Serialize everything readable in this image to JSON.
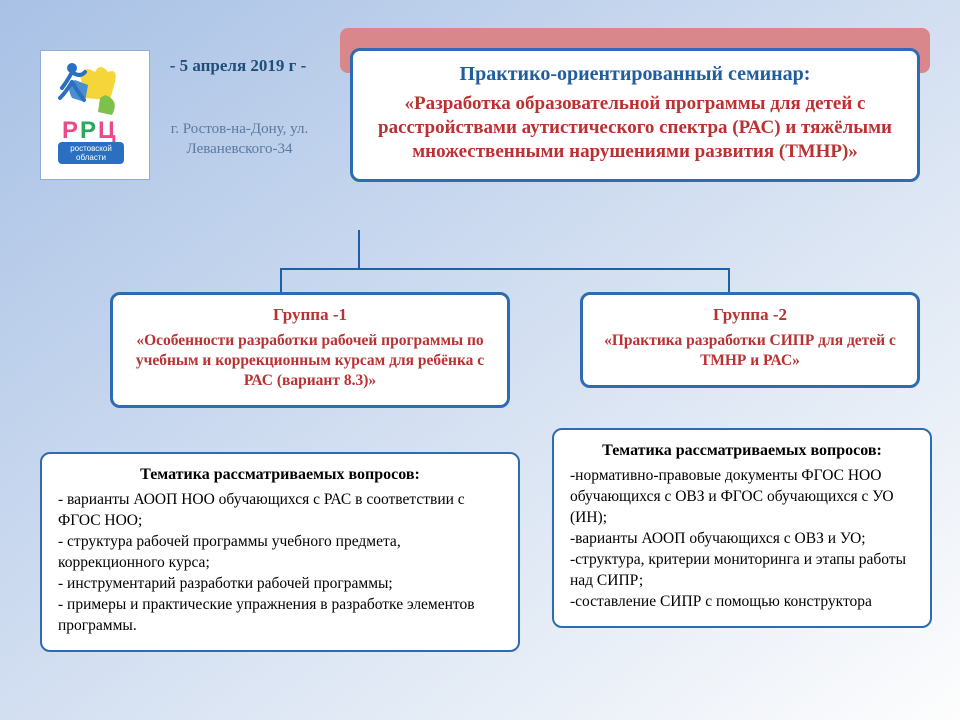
{
  "background": {
    "gradient_from": "#a8c1e5",
    "gradient_to": "#fdfdfd",
    "angle": "to bottom right"
  },
  "date": "- 5 апреля 2019 г -",
  "address": "г. Ростов-на-Дону, ул. Леваневского-34",
  "header": {
    "red_bg": "#d9878b",
    "border_color": "#2e6bb0",
    "title": "Практико-ориентированный семинар:",
    "subtitle": "«Разработка образовательной программы для детей с расстройствами аутистического спектра (РАС) и тяжёлыми множественными нарушениями развития (ТМНР)»"
  },
  "connector_color": "#1f5fa8",
  "group1": {
    "border_color": "#2e6bb0",
    "title": "Группа -1",
    "desc": "«Особенности разработки рабочей программы по учебным и коррекционным курсам для ребёнка с РАС (вариант 8.3)»",
    "desc_color": "#b83232"
  },
  "group2": {
    "border_color": "#2e6bb0",
    "title": "Группа -2",
    "desc": "«Практика разработки СИПР для детей с ТМНР и РАС»",
    "desc_color": "#b83232"
  },
  "topics1": {
    "border_color": "#2e6bb0",
    "title": "Тематика рассматриваемых вопросов:",
    "body": "- варианты АООП НОО обучающихся с РАС в соответствии с ФГОС НОО;\n- структура рабочей программы учебного предмета, коррекционного курса;\n- инструментарий разработки рабочей программы;\n- примеры и практические упражнения в разработке элементов программы."
  },
  "topics2": {
    "border_color": "#2e6bb0",
    "title": "Тематика рассматриваемых вопросов:",
    "body": "-нормативно-правовые документы ФГОС НОО обучающихся с ОВЗ и ФГОС обучающихся с УО (ИН);\n-варианты АООП обучающихся с ОВЗ и УО;\n-структура, критерии мониторинга и этапы работы над СИПР;\n-составление СИПР с помощью конструктора"
  },
  "logo": {
    "text_top_color": "#e94b8a",
    "text_bottom_color": "#2aa85e",
    "puzzle_blue": "#4a8ed0",
    "puzzle_yellow": "#f5d53a",
    "puzzle_green": "#7cc24a",
    "figure_blue": "#2a6fc0",
    "banner_bg": "#2a6fc0",
    "label1": "РРЦ",
    "label2": "ростовской",
    "label3": "области"
  }
}
